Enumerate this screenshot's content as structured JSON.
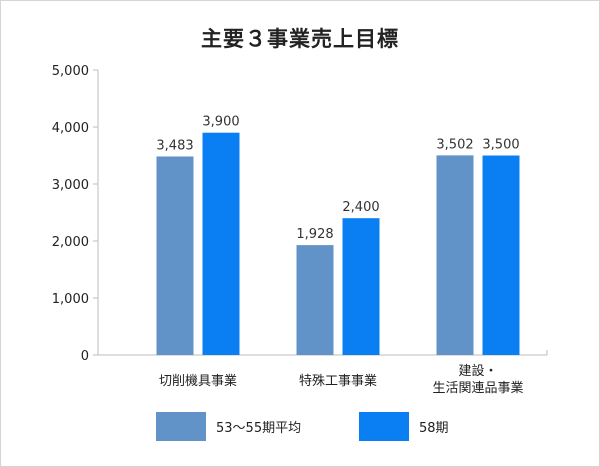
{
  "chart_data": {
    "type": "bar",
    "title": "主要３事業売上目標",
    "categories": [
      [
        "切削機具事業"
      ],
      [
        "特殊工事事業"
      ],
      [
        "建設・",
        "生活関連品事業"
      ]
    ],
    "series": [
      {
        "name": "53〜55期平均",
        "values": [
          3483,
          1928,
          3502
        ],
        "labels": [
          "3,483",
          "1,928",
          "3,502"
        ],
        "color": "#6193c8"
      },
      {
        "name": "58期",
        "values": [
          3900,
          2400,
          3500
        ],
        "labels": [
          "3,900",
          "2,400",
          "3,500"
        ],
        "color": "#0a7ff3"
      }
    ],
    "yticks": [
      0,
      1000,
      2000,
      3000,
      4000,
      5000
    ],
    "ytick_labels": [
      "0",
      "1,000",
      "2,000",
      "3,000",
      "4,000",
      "5,000"
    ],
    "ylim": [
      0,
      5000
    ],
    "grid": false,
    "legend_position": "bottom"
  }
}
